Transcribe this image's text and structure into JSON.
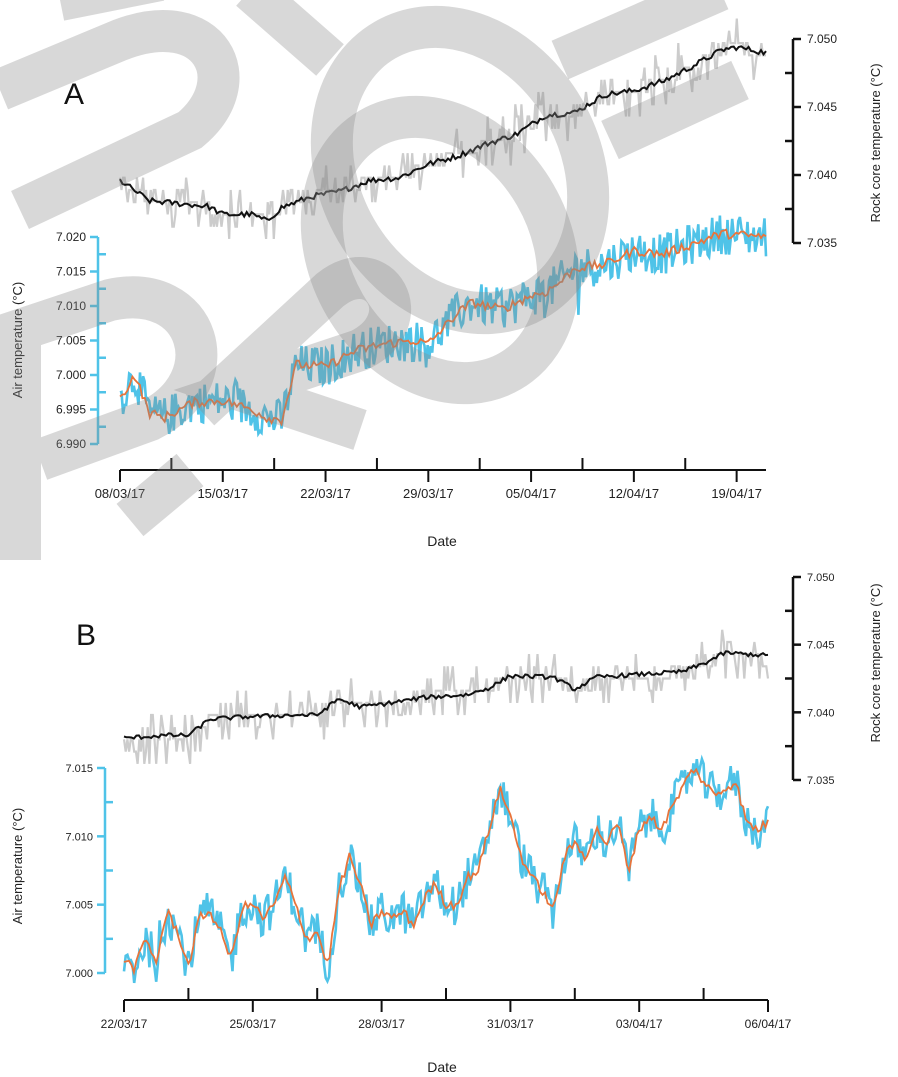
{
  "chart_data": [
    {
      "panel": "A",
      "type": "line",
      "xlabel": "Date",
      "x_ticks": [
        "08/03/17",
        "15/03/17",
        "22/03/17",
        "29/03/17",
        "05/04/17",
        "12/04/17",
        "19/04/17"
      ],
      "x_start": "08/03/17",
      "x_end": "21/04/17",
      "left_axis": {
        "label": "Air temperature (°C)",
        "ticks": [
          "6.990",
          "6.995",
          "7.000",
          "7.005",
          "7.010",
          "7.015",
          "7.020"
        ],
        "range": [
          6.989,
          7.0215
        ],
        "color": "#4fc3e8"
      },
      "right_axis": {
        "label": "Rock core temperature (°C)",
        "ticks": [
          "7.035",
          "7.040",
          "7.045",
          "7.050"
        ],
        "range": [
          7.035,
          7.0505
        ],
        "color": "#111111"
      },
      "series": [
        {
          "axis": "right",
          "color": "#111111",
          "raw_color": "#cccccc",
          "x": [
            "08/03/17",
            "10/03/17",
            "12/03/17",
            "14/03/17",
            "15/03/17",
            "17/03/17",
            "18/03/17",
            "19/03/17",
            "21/03/17",
            "23/03/17",
            "25/03/17",
            "27/03/17",
            "29/03/17",
            "31/03/17",
            "02/04/17",
            "04/04/17",
            "06/04/17",
            "08/04/17",
            "10/04/17",
            "12/04/17",
            "14/04/17",
            "16/04/17",
            "18/04/17",
            "19/04/17",
            "21/04/17"
          ],
          "y": [
            7.0396,
            7.0381,
            7.0379,
            7.0377,
            7.0371,
            7.0371,
            7.0366,
            7.0376,
            7.0384,
            7.0388,
            7.0396,
            7.0398,
            7.0408,
            7.0414,
            7.0423,
            7.043,
            7.0444,
            7.0446,
            7.0459,
            7.0462,
            7.0469,
            7.048,
            7.0492,
            7.0494,
            7.049
          ]
        },
        {
          "axis": "left",
          "color": "#e8743b",
          "raw_color": "#4fc3e8",
          "x": [
            "08/03/17",
            "09/03/17",
            "10/03/17",
            "11/03/17",
            "13/03/17",
            "15/03/17",
            "17/03/17",
            "18/03/17",
            "19/03/17",
            "20/03/17",
            "22/03/17",
            "24/03/17",
            "26/03/17",
            "28/03/17",
            "29/03/17",
            "31/03/17",
            "01/04/17",
            "03/04/17",
            "05/04/17",
            "06/04/17",
            "07/04/17",
            "08/04/17",
            "10/04/17",
            "12/04/17",
            "14/04/17",
            "16/04/17",
            "18/04/17",
            "21/04/17"
          ],
          "y": [
            6.9965,
            7.0,
            6.9945,
            6.9938,
            6.996,
            6.9963,
            6.995,
            6.9938,
            6.9935,
            7.0015,
            7.0012,
            7.0035,
            7.0045,
            7.005,
            7.0045,
            7.009,
            7.0105,
            7.0095,
            7.0115,
            7.012,
            7.0135,
            7.0155,
            7.016,
            7.018,
            7.0175,
            7.019,
            7.0205,
            7.02
          ]
        }
      ]
    },
    {
      "panel": "B",
      "type": "line",
      "xlabel": "Date",
      "x_ticks": [
        "22/03/17",
        "25/03/17",
        "28/03/17",
        "31/03/17",
        "03/04/17",
        "06/04/17"
      ],
      "x_start": "22/03/17",
      "x_end": "06/04/17",
      "left_axis": {
        "label": "Air temperature (°C)",
        "ticks": [
          "7.000",
          "7.005",
          "7.010",
          "7.015"
        ],
        "range": [
          7.0,
          7.0155
        ],
        "color": "#4fc3e8"
      },
      "right_axis": {
        "label": "Rock core temperature (°C)",
        "ticks": [
          "7.035",
          "7.040",
          "7.045",
          "7.050"
        ],
        "range": [
          7.035,
          7.0505
        ],
        "color": "#111111"
      },
      "series": [
        {
          "axis": "right",
          "color": "#111111",
          "raw_color": "#cccccc",
          "x": [
            "22/03/17",
            "23/03/17",
            "23/03/17 12:00",
            "24/03/17",
            "25/03/17",
            "26/03/17",
            "26/03/17 12:00",
            "27/03/17",
            "27/03/17 12:00",
            "28/03/17",
            "29/03/17",
            "30/03/17",
            "30/03/17 12:00",
            "31/03/17",
            "01/04/17",
            "01/04/17 12:00",
            "02/04/17",
            "03/04/17",
            "04/04/17",
            "04/04/17 12:00",
            "05/04/17",
            "06/04/17"
          ],
          "y": [
            7.0381,
            7.0383,
            7.0383,
            7.0395,
            7.0397,
            7.0398,
            7.0398,
            7.041,
            7.0404,
            7.0406,
            7.0411,
            7.0413,
            7.0418,
            7.0427,
            7.0426,
            7.0417,
            7.0426,
            7.0428,
            7.043,
            7.0436,
            7.0444,
            7.0442
          ]
        },
        {
          "axis": "left",
          "color": "#e8743b",
          "raw_color": "#4fc3e8",
          "x": [
            "22/03/17",
            "22/03/17 06:00",
            "22/03/17 12:00",
            "22/03/17 18:00",
            "23/03/17",
            "23/03/17 06:00",
            "23/03/17 12:00",
            "23/03/17 18:00",
            "24/03/17",
            "24/03/17 06:00",
            "24/03/17 12:00",
            "24/03/17 18:00",
            "25/03/17",
            "25/03/17 06:00",
            "25/03/17 12:00",
            "25/03/17 18:00",
            "26/03/17",
            "26/03/17 06:00",
            "26/03/17 12:00",
            "26/03/17 18:00",
            "27/03/17",
            "27/03/17 06:00",
            "27/03/17 12:00",
            "27/03/17 18:00",
            "28/03/17",
            "28/03/17 06:00",
            "28/03/17 12:00",
            "28/03/17 18:00",
            "29/03/17",
            "29/03/17 06:00",
            "29/03/17 12:00",
            "29/03/17 18:00",
            "30/03/17",
            "30/03/17 06:00",
            "30/03/17 12:00",
            "30/03/17 18:00",
            "31/03/17",
            "31/03/17 06:00",
            "31/03/17 12:00",
            "31/03/17 18:00",
            "01/04/17",
            "01/04/17 06:00",
            "01/04/17 12:00",
            "01/04/17 18:00",
            "02/04/17",
            "02/04/17 06:00",
            "02/04/17 12:00",
            "02/04/17 18:00",
            "03/04/17",
            "03/04/17 06:00",
            "03/04/17 12:00",
            "03/04/17 18:00",
            "04/04/17",
            "04/04/17 06:00",
            "04/04/17 12:00",
            "04/04/17 18:00",
            "05/04/17",
            "05/04/17 06:00",
            "05/04/17 12:00",
            "05/04/17 18:00",
            "06/04/17"
          ],
          "y": [
            7.001,
            7.0003,
            7.0025,
            7.0008,
            7.0045,
            7.003,
            7.0005,
            7.004,
            7.0045,
            7.003,
            7.001,
            7.0048,
            7.005,
            7.004,
            7.005,
            7.007,
            7.005,
            7.0025,
            7.003,
            7.0005,
            7.006,
            7.0085,
            7.0065,
            7.0035,
            7.0045,
            7.004,
            7.0045,
            7.0035,
            7.0055,
            7.0065,
            7.005,
            7.005,
            7.007,
            7.0075,
            7.0105,
            7.0135,
            7.0115,
            7.0085,
            7.007,
            7.006,
            7.0045,
            7.0085,
            7.0095,
            7.0085,
            7.0105,
            7.0095,
            7.011,
            7.0075,
            7.0105,
            7.0115,
            7.0105,
            7.012,
            7.0135,
            7.015,
            7.014,
            7.013,
            7.0135,
            7.014,
            7.011,
            7.0105,
            7.011
          ]
        }
      ]
    }
  ],
  "panels": [
    {
      "label": "A",
      "xlabel": "Date",
      "left_label": "Air temperature (°C)",
      "right_label": "Rock core temperature (°C)"
    },
    {
      "label": "B",
      "xlabel": "Date",
      "left_label": "Air temperature (°C)",
      "right_label": "Rock core temperature (°C)"
    }
  ],
  "watermark": "PROOF"
}
